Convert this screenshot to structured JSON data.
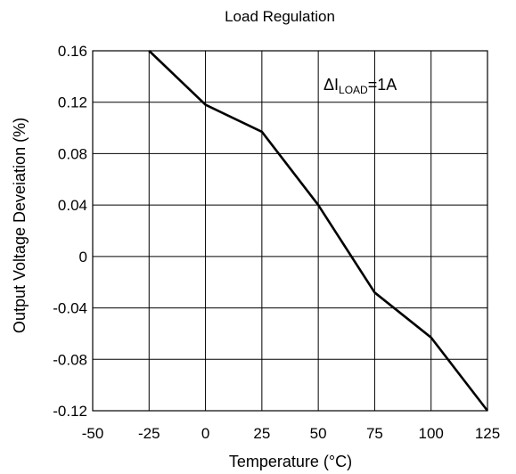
{
  "chart_data": {
    "type": "line",
    "title": "Load Regulation",
    "xlabel": "Temperature (°C)",
    "ylabel": "Output Voltage Deveiation (%)",
    "xlim": [
      -50,
      125
    ],
    "ylim": [
      -0.12,
      0.16
    ],
    "x_ticks": [
      -50,
      -25,
      0,
      25,
      50,
      75,
      100,
      125
    ],
    "y_ticks": [
      0.16,
      0.12,
      0.08,
      0.04,
      0,
      -0.04,
      -0.08,
      -0.12
    ],
    "x_tick_labels": [
      "-50",
      "-25",
      "0",
      "25",
      "50",
      "75",
      "100",
      "125"
    ],
    "y_tick_labels": [
      "0.16",
      "0.12",
      "0.08",
      "0.04",
      "0",
      "-0.04",
      "-0.08",
      "-0.12"
    ],
    "grid": true,
    "series": [
      {
        "x": [
          -25,
          0,
          25,
          50,
          75,
          100,
          125
        ],
        "y": [
          0.16,
          0.118,
          0.097,
          0.04,
          -0.028,
          -0.063,
          -0.12
        ]
      }
    ],
    "annotation": {
      "prefix": "ΔI",
      "subscript": "LOAD",
      "suffix": "=1A"
    }
  }
}
